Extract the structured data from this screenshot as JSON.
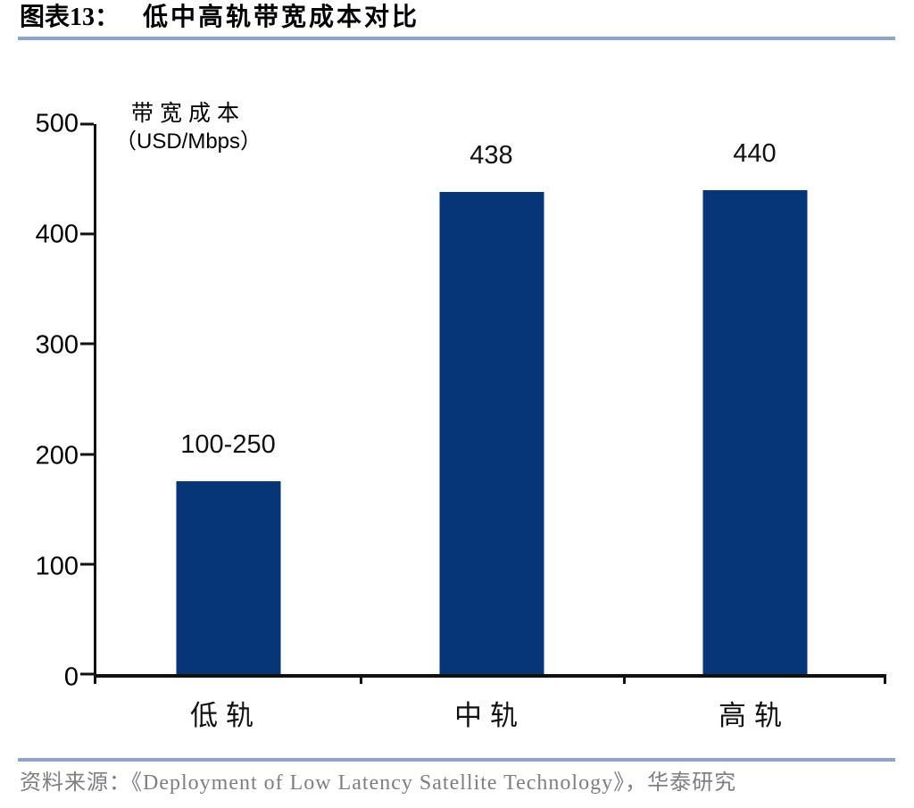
{
  "header": {
    "figure_label": "图表13：",
    "title": "低中高轨带宽成本对比",
    "rule_color": "#8CA4C6"
  },
  "chart_data": {
    "type": "bar",
    "title": "低中高轨带宽成本对比",
    "categories": [
      "低轨",
      "中轨",
      "高轨"
    ],
    "values": [
      175,
      438,
      440
    ],
    "bar_labels": [
      "100-250",
      "438",
      "440"
    ],
    "ylabel_line1": "带宽成本",
    "ylabel_line2": "（USD/Mbps）",
    "yticks": [
      0,
      100,
      200,
      300,
      400,
      500
    ],
    "ylim": [
      0,
      500
    ],
    "bar_color": "#073678",
    "grid": false,
    "legend": "none"
  },
  "footer": {
    "source_text": "资料来源：《Deployment of Low Latency Satellite Technology》，华泰研究"
  }
}
